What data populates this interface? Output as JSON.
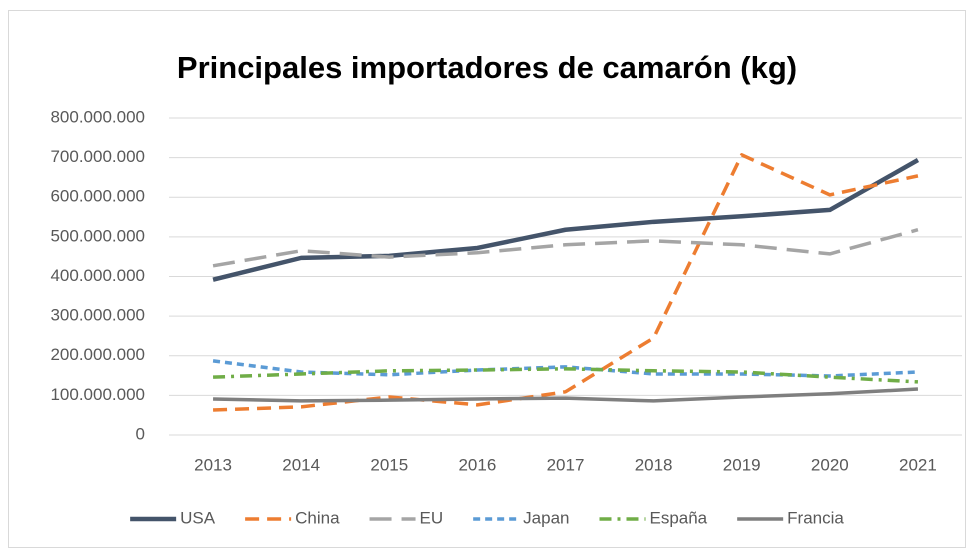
{
  "chart_data": {
    "type": "line",
    "title": "Principales importadores de camarón (kg)",
    "categories": [
      "2013",
      "2014",
      "2015",
      "2016",
      "2017",
      "2018",
      "2019",
      "2020",
      "2021"
    ],
    "series": [
      {
        "name": "USA",
        "color": "#44546a",
        "dash": "solid",
        "values": [
          392000000,
          447000000,
          452000000,
          472000000,
          518000000,
          538000000,
          552000000,
          568000000,
          694000000
        ]
      },
      {
        "name": "China",
        "color": "#ed7d31",
        "dash": "dash",
        "values": [
          63000000,
          71000000,
          96000000,
          76000000,
          109000000,
          245000000,
          707000000,
          606000000,
          654000000
        ]
      },
      {
        "name": "EU",
        "color": "#a5a5a5",
        "dash": "longdash",
        "values": [
          427000000,
          465000000,
          449000000,
          460000000,
          480000000,
          490000000,
          480000000,
          457000000,
          518000000
        ]
      },
      {
        "name": "Japan",
        "color": "#5b9bd5",
        "dash": "shortdash",
        "values": [
          187000000,
          159000000,
          152000000,
          164000000,
          172000000,
          154000000,
          154000000,
          149000000,
          159000000
        ]
      },
      {
        "name": "España",
        "color": "#70ad47",
        "dash": "dashdot",
        "values": [
          146000000,
          154000000,
          162000000,
          164000000,
          167000000,
          162000000,
          159000000,
          146000000,
          134000000
        ]
      },
      {
        "name": "Francia",
        "color": "#7f7f7f",
        "dash": "solid",
        "values": [
          91000000,
          86000000,
          88000000,
          91000000,
          93000000,
          86000000,
          96000000,
          104000000,
          116000000
        ]
      }
    ],
    "ylim": [
      0,
      800000000
    ],
    "yticks": [
      0,
      {
        "value": 100000000,
        "label": "100.000.000"
      },
      {
        "value": 200000000,
        "label": "200.000.000"
      },
      {
        "value": 300000000,
        "label": "300.000.000"
      },
      {
        "value": 400000000,
        "label": "400.000.000"
      },
      {
        "value": 500000000,
        "label": "500.000.000"
      },
      {
        "value": 600000000,
        "label": "600.000.000"
      },
      {
        "value": 700000000,
        "label": "700.000.000"
      },
      {
        "value": 800000000,
        "label": "800.000.000"
      }
    ],
    "grid": true,
    "legend": "bottom"
  }
}
